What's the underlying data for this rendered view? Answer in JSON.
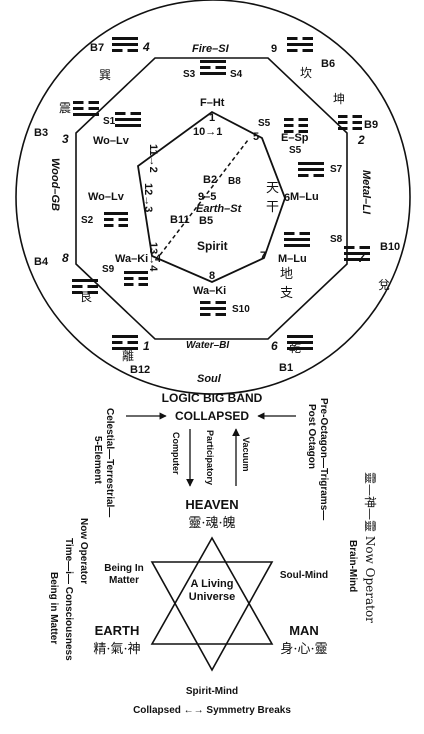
{
  "outer": {
    "top_left_trigram": "B7",
    "top_left_num": "4",
    "fire_label": "Fire–SI",
    "top_right_num": "9",
    "top_right_trigram": "B6",
    "left_upper_num": "3",
    "left_upper_trigram": "B3",
    "wood_label": "Wood–GB",
    "left_lower_trigram": "B4",
    "left_lower_num": "8",
    "right_upper_trigram": "B9",
    "right_upper_num": "2",
    "metal_label": "Metal–LI",
    "right_lower_trigram": "B10",
    "right_lower_num": "7",
    "water_label": "Water–BI",
    "bottom_left_num": "1",
    "bottom_left_trigram": "B12",
    "bottom_right_num": "6",
    "bottom_right_trigram": "B1",
    "soul_label": "Soul",
    "chars": {
      "xun": "巽",
      "kan": "坎",
      "zhen": "震",
      "kun": "坤",
      "gen": "艮",
      "dui": "兌",
      "li": "離",
      "qian": "乾"
    }
  },
  "octagon": {
    "s3": "S3",
    "s4": "S4",
    "fht": "F–Ht",
    "s1": "S1",
    "wolv_top": "Wo–Lv",
    "s5_top": "S5",
    "esp": "E–Sp",
    "s5_right": "S5",
    "s7": "S7",
    "mlu_top": "M–Lu",
    "s2": "S2",
    "wolv_mid": "Wo–Lv",
    "s8": "S8",
    "mlu_bottom": "M–Lu",
    "s9": "S9",
    "waki_left": "Wa–Ki",
    "s10": "S10",
    "waki_bottom": "Wa–Ki"
  },
  "inner": {
    "n1": "1",
    "n5": "5",
    "n6": "6",
    "n7": "7",
    "n8": "8",
    "n4": "4",
    "t10_1": "10→1",
    "t11_2": "11→2",
    "t12_3": "12→3",
    "t13_4": "13→4",
    "b2": "B2",
    "b8": "B8",
    "t9_5": "9–5",
    "earth_st": "Earth–St",
    "b11": "B11",
    "b5": "B5",
    "spirit": "Spirit",
    "tian": "天",
    "gan": "干",
    "di": "地",
    "zhi": "支"
  },
  "lower": {
    "logic_big_band": "LOGIC BIG BAND",
    "collapsed": "COLLAPSED",
    "left_vert": "Celestial—Terrestrial—",
    "left_vert2": "5-Element",
    "right_vert": "Pre-Octagon—Trigrams—",
    "right_vert2": "Post Octagon",
    "computer": "Computer",
    "participatory": "Participatory",
    "vacuum": "Vacuum",
    "heaven": "HEAVEN",
    "heaven_cn": "靈·魂·魄",
    "far_left1": "Now Operator",
    "far_left2": "Time—i— Consciousness",
    "far_left3": "Being in Matter",
    "far_right1": "靈—神—靈 Now Operator",
    "far_right2": "Brain-Mind",
    "being_in": "Being In",
    "matter": "Matter",
    "soul_mind": "Soul-Mind",
    "a_living": "A Living",
    "universe": "Universe",
    "earth": "EARTH",
    "earth_cn": "精·氣·神",
    "man": "MAN",
    "man_cn": "身·心·靈",
    "spirit_mind": "Spirit-Mind",
    "bottom_line": "Collapsed ←→ Symmetry Breaks"
  }
}
